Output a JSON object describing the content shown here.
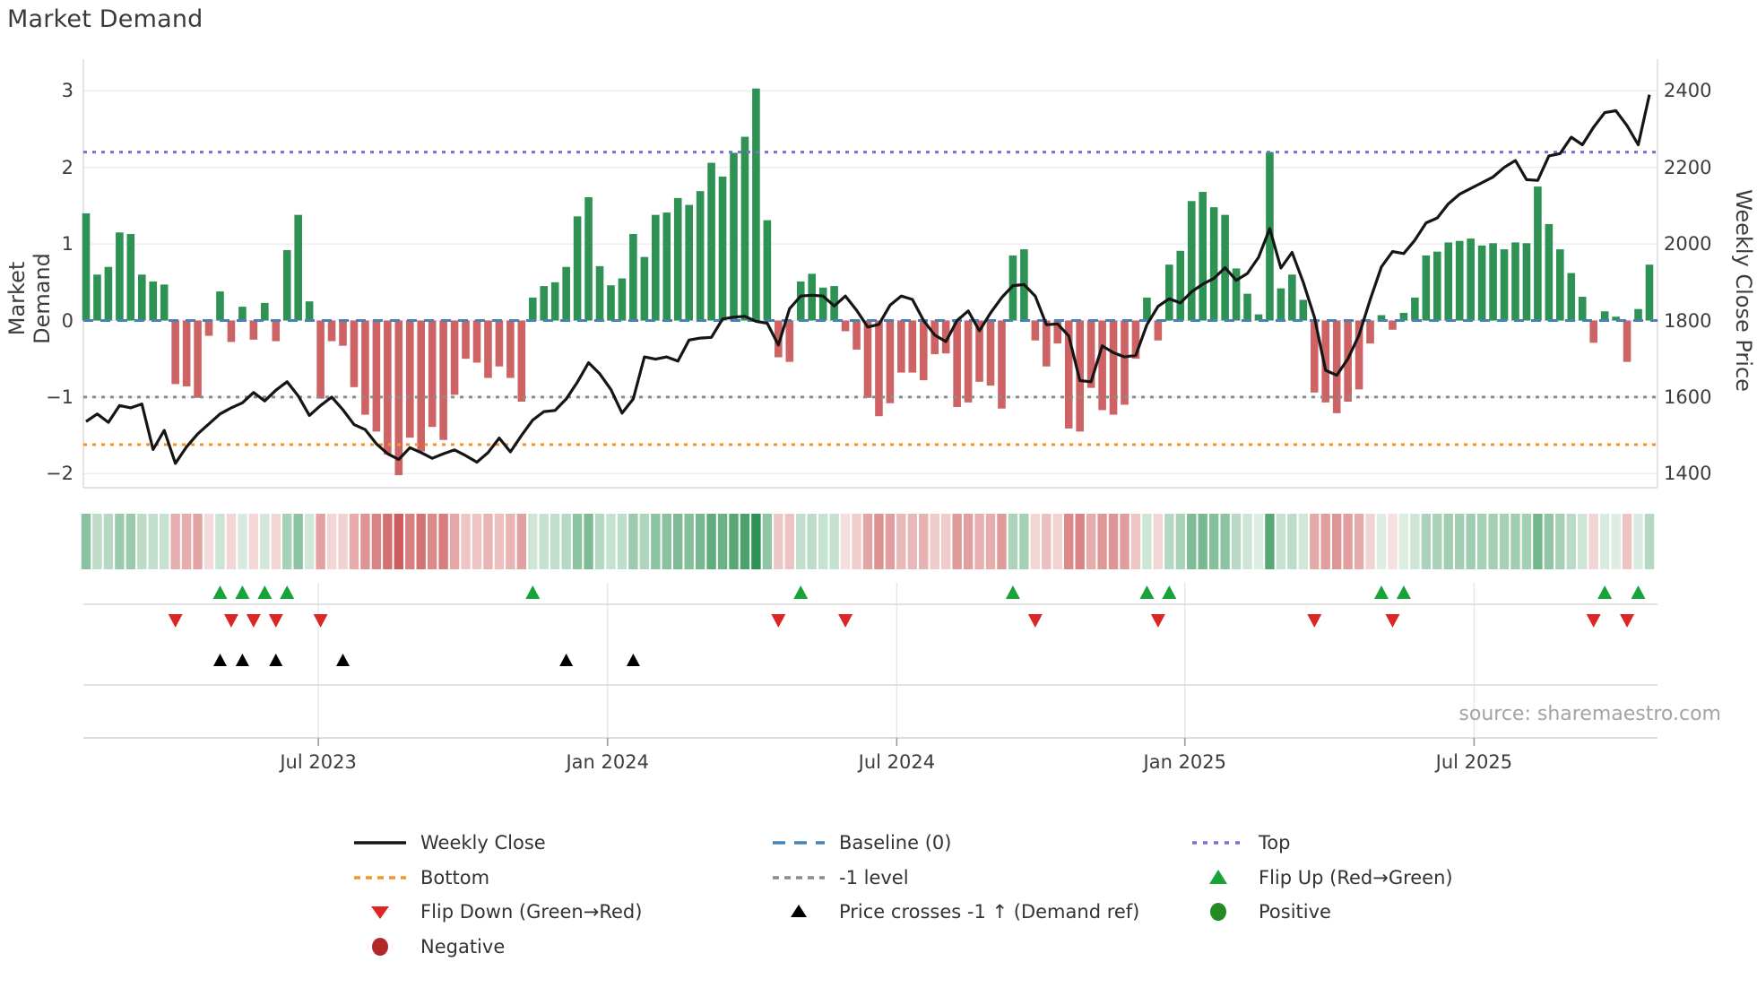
{
  "title": "Market Demand",
  "source": "source: sharemaestro.com",
  "axes": {
    "left_title": "Market Demand",
    "right_title": "Weekly Close Price",
    "left_ticks": [
      3,
      2,
      1,
      0,
      -1,
      -2
    ],
    "right_ticks": [
      2400,
      2200,
      2000,
      1800,
      1600,
      1400
    ],
    "x_ticks": [
      {
        "label": "Jul 2023",
        "week": 20.8
      },
      {
        "label": "Jan 2024",
        "week": 46.7
      },
      {
        "label": "Jul 2024",
        "week": 72.6
      },
      {
        "label": "Jan 2025",
        "week": 98.4
      },
      {
        "label": "Jul 2025",
        "week": 124.3
      }
    ]
  },
  "colors": {
    "bar_pos": "#2e9254",
    "bar_neg": "#cd6364",
    "price_line": "#151515",
    "baseline": "#4682b4",
    "top_line": "#7b6fd4",
    "bottom_line": "#f59425",
    "minus1_line": "#8c8c8c",
    "flip_up": "#17a337",
    "flip_down": "#dc2626",
    "price_cross": "#000000",
    "positive_dot": "#228b22",
    "negative_dot": "#b02828",
    "grid": "#ebebf3",
    "spine": "#d8d8d8",
    "panel_grid": "#e4e4ea",
    "heat_pos_rgb": "46,146,84",
    "heat_neg_rgb": "205,92,92"
  },
  "chart_data": {
    "type": "bar",
    "title": "Market Demand",
    "x_unit": "weeks (weekly bars, Feb 2023 - Oct 2025)",
    "ylabel_left": "Market Demand",
    "ylabel_right": "Weekly Close Price",
    "demand_ylim": [
      -2.18,
      3.41
    ],
    "price_ylim": [
      1364,
      2482
    ],
    "grid": true,
    "legend_position": "bottom",
    "reference_lines": {
      "baseline": 0,
      "top": 2.2,
      "bottom": -1.62,
      "minus1": -1
    },
    "series": [
      {
        "name": "Market Demand (weekly bars)",
        "values": [
          1.4,
          0.6,
          0.7,
          1.15,
          1.13,
          0.6,
          0.51,
          0.47,
          -0.83,
          -0.86,
          -1.01,
          -0.2,
          0.38,
          -0.28,
          0.18,
          -0.25,
          0.23,
          -0.27,
          0.92,
          1.38,
          0.25,
          -1.02,
          -0.27,
          -0.33,
          -0.87,
          -1.23,
          -1.45,
          -1.75,
          -2.02,
          -1.53,
          -1.71,
          -1.39,
          -1.56,
          -0.97,
          -0.5,
          -0.55,
          -0.75,
          -0.6,
          -0.75,
          -1.06,
          0.3,
          0.45,
          0.5,
          0.7,
          1.36,
          1.61,
          0.71,
          0.46,
          0.55,
          1.13,
          0.83,
          1.38,
          1.41,
          1.6,
          1.51,
          1.69,
          2.06,
          1.88,
          2.19,
          2.4,
          3.03,
          1.31,
          -0.48,
          -0.54,
          0.51,
          0.61,
          0.43,
          0.45,
          -0.14,
          -0.38,
          -1.01,
          -1.25,
          -1.08,
          -0.68,
          -0.68,
          -0.78,
          -0.44,
          -0.43,
          -1.13,
          -1.07,
          -0.8,
          -0.85,
          -1.15,
          0.85,
          0.93,
          -0.26,
          -0.6,
          -0.3,
          -1.41,
          -1.45,
          -0.88,
          -1.17,
          -1.23,
          -1.1,
          -0.5,
          0.3,
          -0.26,
          0.73,
          0.91,
          1.56,
          1.68,
          1.48,
          1.38,
          0.68,
          0.35,
          0.08,
          2.2,
          0.42,
          0.6,
          0.27,
          -0.94,
          -1.07,
          -1.21,
          -1.06,
          -0.9,
          -0.3,
          0.07,
          -0.12,
          0.1,
          0.3,
          0.85,
          0.9,
          1.02,
          1.04,
          1.07,
          0.98,
          1.01,
          0.93,
          1.02,
          1.01,
          1.75,
          1.26,
          0.93,
          0.62,
          0.31,
          -0.29,
          0.12,
          0.05,
          -0.54,
          0.15,
          0.73
        ]
      },
      {
        "name": "Weekly Close",
        "values": [
          1536,
          1556,
          1534,
          1578,
          1572,
          1582,
          1463,
          1513,
          1427,
          1470,
          1504,
          1530,
          1556,
          1572,
          1585,
          1612,
          1590,
          1618,
          1640,
          1603,
          1552,
          1578,
          1600,
          1567,
          1528,
          1515,
          1478,
          1452,
          1437,
          1468,
          1455,
          1440,
          1452,
          1462,
          1447,
          1430,
          1455,
          1493,
          1457,
          1500,
          1540,
          1562,
          1565,
          1595,
          1639,
          1690,
          1661,
          1620,
          1558,
          1595,
          1705,
          1699,
          1705,
          1694,
          1749,
          1754,
          1756,
          1804,
          1809,
          1811,
          1798,
          1793,
          1736,
          1831,
          1864,
          1866,
          1864,
          1838,
          1864,
          1827,
          1783,
          1790,
          1840,
          1864,
          1855,
          1800,
          1762,
          1745,
          1800,
          1825,
          1773,
          1820,
          1860,
          1891,
          1894,
          1864,
          1789,
          1791,
          1760,
          1643,
          1640,
          1734,
          1716,
          1705,
          1709,
          1789,
          1837,
          1857,
          1846,
          1875,
          1895,
          1910,
          1938,
          1905,
          1923,
          1965,
          2040,
          1937,
          1978,
          1900,
          1809,
          1670,
          1657,
          1700,
          1762,
          1855,
          1940,
          1980,
          1975,
          2010,
          2055,
          2068,
          2105,
          2130,
          2145,
          2160,
          2175,
          2200,
          2218,
          2168,
          2166,
          2230,
          2236,
          2279,
          2259,
          2305,
          2343,
          2348,
          2309,
          2259,
          2390
        ]
      }
    ],
    "heatmap_strip": "same values as Market Demand series; green cells for positive weeks, red cells for negative weeks, opacity scales with magnitude",
    "markers": {
      "flip_up_weeks": [
        12,
        14,
        16,
        18,
        40,
        64,
        83,
        95,
        97,
        116,
        118,
        136,
        139
      ],
      "flip_down_weeks": [
        8,
        13,
        15,
        17,
        21,
        62,
        68,
        85,
        96,
        110,
        117,
        135,
        138
      ],
      "price_cross_up_weeks": [
        12,
        14,
        17,
        23,
        43,
        49
      ]
    }
  },
  "legend": {
    "columns": [
      {
        "x": 393,
        "items": [
          {
            "swatch": "line-black",
            "label": "Weekly Close"
          },
          {
            "swatch": "dash-orange",
            "label": "Bottom"
          },
          {
            "swatch": "tri-down-red",
            "label": "Flip Down (Green→Red)"
          },
          {
            "swatch": "circle-darkred",
            "label": "Negative"
          }
        ]
      },
      {
        "x": 860,
        "items": [
          {
            "swatch": "dash-blue",
            "label": "Baseline (0)"
          },
          {
            "swatch": "dash-gray",
            "label": "-1 level"
          },
          {
            "swatch": "tri-up-black",
            "label": "Price crosses -1 ↑ (Demand ref)"
          }
        ]
      },
      {
        "x": 1328,
        "items": [
          {
            "swatch": "dots-purple",
            "label": "Top"
          },
          {
            "swatch": "tri-up-green",
            "label": "Flip Up (Red→Green)"
          },
          {
            "swatch": "circle-green",
            "label": "Positive"
          }
        ]
      }
    ]
  }
}
